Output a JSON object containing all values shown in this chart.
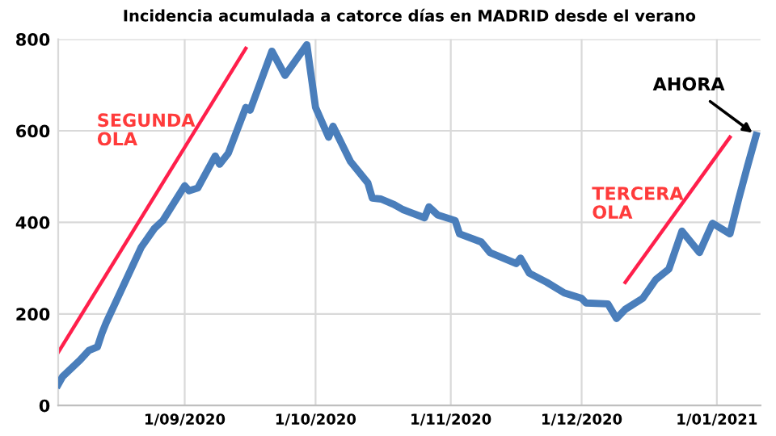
{
  "chart_data": {
    "type": "line",
    "title": "Incidencia acumulada a catorce días en MADRID desde el verano",
    "xlim": [
      "2020-08-03",
      "2021-01-11"
    ],
    "xticks": [
      {
        "value": "2020-09-01",
        "label": "1/09/2020"
      },
      {
        "value": "2020-10-01",
        "label": "1/10/2020"
      },
      {
        "value": "2020-11-01",
        "label": "1/11/2020"
      },
      {
        "value": "2020-12-01",
        "label": "1/12/2020"
      },
      {
        "value": "2021-01-01",
        "label": "1/01/2021"
      }
    ],
    "ylim": [
      0,
      800
    ],
    "yticks": [
      0,
      200,
      400,
      600,
      800
    ],
    "grid": true,
    "series": [
      {
        "color": "#4a7ebb",
        "x": [
          "2020-08-03",
          "2020-08-04",
          "2020-08-06",
          "2020-08-08",
          "2020-08-10",
          "2020-08-12",
          "2020-08-13",
          "2020-08-14",
          "2020-08-18",
          "2020-08-22",
          "2020-08-25",
          "2020-08-27",
          "2020-09-01",
          "2020-09-02",
          "2020-09-04",
          "2020-09-08",
          "2020-09-09",
          "2020-09-11",
          "2020-09-15",
          "2020-09-16",
          "2020-09-21",
          "2020-09-24",
          "2020-09-29",
          "2020-10-01",
          "2020-10-04",
          "2020-10-05",
          "2020-10-09",
          "2020-10-13",
          "2020-10-14",
          "2020-10-16",
          "2020-10-19",
          "2020-10-21",
          "2020-10-26",
          "2020-10-27",
          "2020-10-29",
          "2020-11-02",
          "2020-11-03",
          "2020-11-08",
          "2020-11-10",
          "2020-11-16",
          "2020-11-17",
          "2020-11-19",
          "2020-11-23",
          "2020-11-27",
          "2020-12-01",
          "2020-12-02",
          "2020-12-07",
          "2020-12-09",
          "2020-12-11",
          "2020-12-15",
          "2020-12-18",
          "2020-12-21",
          "2020-12-24",
          "2020-12-28",
          "2020-12-31",
          "2021-01-04",
          "2021-01-06",
          "2021-01-08",
          "2021-01-10"
        ],
        "values": [
          46,
          63,
          81,
          99,
          120,
          128,
          157,
          181,
          263,
          345,
          386,
          404,
          480,
          469,
          475,
          545,
          527,
          551,
          651,
          645,
          774,
          721,
          788,
          651,
          586,
          610,
          533,
          486,
          453,
          451,
          439,
          428,
          410,
          434,
          416,
          404,
          375,
          357,
          334,
          310,
          322,
          289,
          269,
          246,
          234,
          224,
          222,
          190,
          210,
          234,
          275,
          298,
          381,
          334,
          398,
          375,
          451,
          522,
          590
        ]
      },
      {
        "color": "#ff1f4b",
        "x": [
          "2020-08-03",
          "2020-09-15"
        ],
        "values": [
          116,
          780
        ]
      },
      {
        "color": "#ff1f4b",
        "x": [
          "2020-12-11",
          "2021-01-04"
        ],
        "values": [
          269,
          586
        ]
      }
    ],
    "annotations": [
      "SEGUNDA OLA",
      "TERCERA OLA",
      {
        "text": "AHORA",
        "x": "2021-01-10",
        "y": 590
      }
    ]
  }
}
